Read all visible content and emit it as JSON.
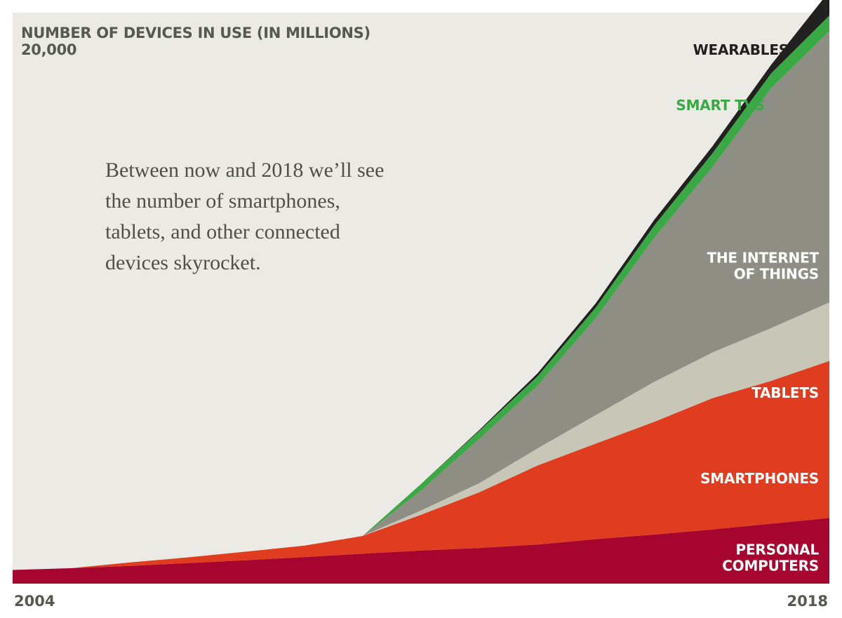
{
  "chart_data": {
    "type": "area",
    "stacked": true,
    "ylabel": "NUMBER OF DEVICES IN USE (IN MILLIONS)",
    "y_max_label": "20,000",
    "ylim": [
      0,
      20000
    ],
    "x_start_label": "2004",
    "x_end_label": "2018",
    "x": [
      2004,
      2005,
      2006,
      2007,
      2008,
      2009,
      2010,
      2011,
      2012,
      2013,
      2014,
      2015,
      2016,
      2017,
      2018
    ],
    "annotation": [
      "Between now and 2018 we’ll see",
      "the number of smartphones,",
      "tablets, and other connected",
      "devices skyrocket."
    ],
    "background_color": "#ebeae5",
    "series": [
      {
        "name": "PERSONAL COMPUTERS",
        "color": "#a60530",
        "label_color": "#ffffff",
        "values": [
          480,
          540,
          620,
          720,
          820,
          930,
          1050,
          1160,
          1250,
          1370,
          1560,
          1720,
          1900,
          2100,
          2300
        ]
      },
      {
        "name": "SMARTPHONES",
        "color": "#e03c20",
        "label_color": "#ffffff",
        "values": [
          0,
          0,
          120,
          200,
          300,
          400,
          620,
          1250,
          1950,
          2770,
          3350,
          3950,
          4600,
          5000,
          5500
        ]
      },
      {
        "name": "TABLETS",
        "color": "#c8c6b6",
        "label_color": "#ffffff",
        "values": [
          0,
          0,
          0,
          0,
          0,
          0,
          0,
          150,
          320,
          600,
          1000,
          1400,
          1600,
          1850,
          2050
        ]
      },
      {
        "name": "THE INTERNET OF THINGS",
        "color": "#8f8e85",
        "label_color": "#ffffff",
        "values": [
          0,
          0,
          0,
          0,
          0,
          0,
          0,
          700,
          1550,
          2200,
          3400,
          5050,
          6500,
          8400,
          9500
        ]
      },
      {
        "name": "SMART TVS",
        "color": "#3aa844",
        "label_color": "#3aa844",
        "values": [
          0,
          0,
          0,
          0,
          0,
          0,
          0,
          230,
          280,
          330,
          370,
          430,
          480,
          520,
          550
        ]
      },
      {
        "name": "WEARABLES",
        "color": "#222120",
        "label_color": "#222120",
        "values": [
          0,
          0,
          0,
          0,
          0,
          0,
          0,
          0,
          30,
          100,
          150,
          200,
          250,
          300,
          850
        ]
      }
    ]
  }
}
